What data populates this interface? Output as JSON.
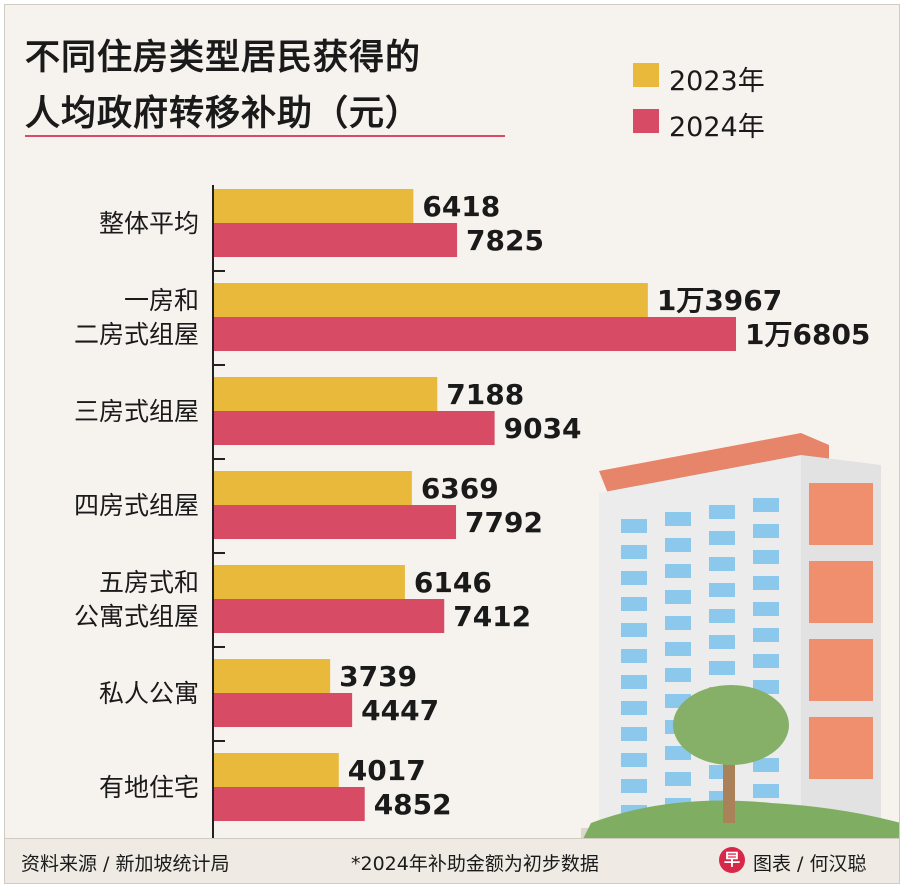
{
  "title": {
    "line1": "不同住房类型居民获得的",
    "line2": "人均政府转移补助（元）"
  },
  "legend": [
    {
      "label": "2023年",
      "color": "#e9b93c"
    },
    {
      "label": "2024年",
      "color": "#d84b64"
    }
  ],
  "chart_data": {
    "type": "bar",
    "orientation": "horizontal",
    "categories": [
      "整体平均",
      "一房和\n二房式组屋",
      "三房式组屋",
      "四房式组屋",
      "五房式和\n公寓式组屋",
      "私人公寓",
      "有地住宅"
    ],
    "series": [
      {
        "name": "2023年",
        "color": "#e9b93c",
        "values": [
          6418,
          13967,
          7188,
          6369,
          6146,
          3739,
          4017
        ],
        "labels": [
          "6418",
          "1万3967",
          "7188",
          "6369",
          "6146",
          "3739",
          "4017"
        ]
      },
      {
        "name": "2024年",
        "color": "#d84b64",
        "values": [
          7825,
          16805,
          9034,
          7792,
          7412,
          4447,
          4852
        ],
        "labels": [
          "7825",
          "1万6805",
          "9034",
          "7792",
          "7412",
          "4447",
          "4852"
        ]
      }
    ],
    "xlim": [
      0,
      17000
    ],
    "grid": false,
    "legend_position": "top-right"
  },
  "footer": {
    "source": "资料来源 / 新加坡统计局",
    "note": "*2024年补助金额为初步数据",
    "logo": "早",
    "credit": "图表 / 何汉聪"
  }
}
